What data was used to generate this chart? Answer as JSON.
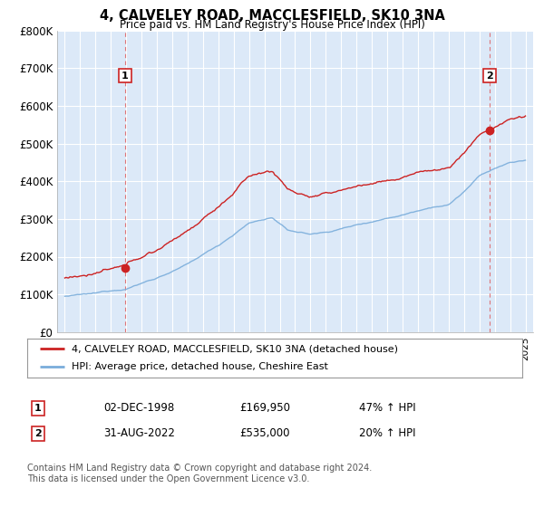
{
  "title": "4, CALVELEY ROAD, MACCLESFIELD, SK10 3NA",
  "subtitle": "Price paid vs. HM Land Registry's House Price Index (HPI)",
  "ylim": [
    0,
    800000
  ],
  "yticks": [
    0,
    100000,
    200000,
    300000,
    400000,
    500000,
    600000,
    700000,
    800000
  ],
  "ytick_labels": [
    "£0",
    "£100K",
    "£200K",
    "£300K",
    "£400K",
    "£500K",
    "£600K",
    "£700K",
    "£800K"
  ],
  "plot_bg": "#dce9f8",
  "grid_color": "#ffffff",
  "hpi_color": "#7aaddb",
  "price_color": "#cc2222",
  "sale1_date": 1998.92,
  "sale1_price": 169950,
  "sale2_date": 2022.67,
  "sale2_price": 535000,
  "legend_house": "4, CALVELEY ROAD, MACCLESFIELD, SK10 3NA (detached house)",
  "legend_hpi": "HPI: Average price, detached house, Cheshire East",
  "note1_date": "02-DEC-1998",
  "note1_price": "£169,950",
  "note1_pct": "47% ↑ HPI",
  "note2_date": "31-AUG-2022",
  "note2_price": "£535,000",
  "note2_pct": "20% ↑ HPI",
  "footer": "Contains HM Land Registry data © Crown copyright and database right 2024.\nThis data is licensed under the Open Government Licence v3.0.",
  "xmin": 1994.5,
  "xmax": 2025.5
}
